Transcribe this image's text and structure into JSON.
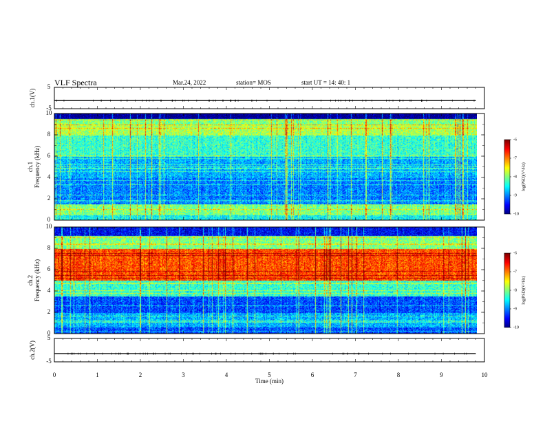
{
  "header": {
    "title": "VLF Spectra",
    "date": "Mar.24, 2022",
    "station": "station= MOS",
    "start_ut": "start  UT =   14: 40: 1"
  },
  "chart_data": [
    {
      "type": "line",
      "panel": "ch1-waveform",
      "ylabel": "ch.1(V)",
      "ylim": [
        -5,
        5
      ],
      "yticks": [
        "5",
        "-5"
      ],
      "x_range_min": [
        0,
        10
      ],
      "series": [
        {
          "values_note": "flat",
          "x": [
            0,
            9.8
          ],
          "y": [
            -1.2,
            -1.2
          ]
        }
      ]
    },
    {
      "type": "heatmap",
      "panel": "ch1-spectrogram",
      "ylabel": "Frequency (kHz)",
      "ylabel_prefix": "ch.1",
      "ylim": [
        0,
        10
      ],
      "yticks": [
        "0",
        "2",
        "4",
        "6",
        "8",
        "10"
      ],
      "x_range_min": [
        0,
        9.83
      ],
      "colorbar": {
        "label": "log(PSD)(V²/Hz)",
        "range": [
          -10,
          -6
        ],
        "ticks": [
          "-6",
          "-7",
          "-8",
          "-9",
          "-10"
        ]
      },
      "bands": [
        {
          "f_lo": 0,
          "f_hi": 0.5,
          "level": -8.5
        },
        {
          "f_lo": 0.5,
          "f_hi": 1.5,
          "level": -8.0
        },
        {
          "f_lo": 1.5,
          "f_hi": 2.5,
          "level": -9.0
        },
        {
          "f_lo": 2.5,
          "f_hi": 4.0,
          "level": -9.0
        },
        {
          "f_lo": 4.0,
          "f_hi": 6.0,
          "level": -8.8
        },
        {
          "f_lo": 6.0,
          "f_hi": 8.0,
          "level": -8.3
        },
        {
          "f_lo": 8.0,
          "f_hi": 9.0,
          "level": -7.8
        },
        {
          "f_lo": 9.0,
          "f_hi": 9.5,
          "level": -8.0
        },
        {
          "f_lo": 9.5,
          "f_hi": 10,
          "level": -10
        }
      ]
    },
    {
      "type": "heatmap",
      "panel": "ch2-spectrogram",
      "ylabel": "Frequency (kHz)",
      "ylabel_prefix": "ch.2",
      "ylim": [
        0,
        10
      ],
      "yticks": [
        "0",
        "2",
        "4",
        "6",
        "8",
        "10"
      ],
      "x_range_min": [
        0,
        9.83
      ],
      "colorbar": {
        "label": "log(PSD)(V²/Hz)",
        "range": [
          -10,
          -6
        ],
        "ticks": [
          "-6",
          "-7",
          "-8",
          "-9",
          "-10"
        ]
      },
      "bands": [
        {
          "f_lo": 0,
          "f_hi": 0.6,
          "level": -9.2
        },
        {
          "f_lo": 0.6,
          "f_hi": 2.0,
          "level": -8.8
        },
        {
          "f_lo": 2.0,
          "f_hi": 3.5,
          "level": -9.2
        },
        {
          "f_lo": 3.5,
          "f_hi": 5.0,
          "level": -8.3
        },
        {
          "f_lo": 5.0,
          "f_hi": 8.0,
          "level": -6.8
        },
        {
          "f_lo": 8.0,
          "f_hi": 9.2,
          "level": -8.0
        },
        {
          "f_lo": 9.2,
          "f_hi": 10,
          "level": -9.5
        }
      ]
    },
    {
      "type": "line",
      "panel": "ch2-waveform",
      "ylabel": "ch.2(V)",
      "ylim": [
        -5,
        5
      ],
      "yticks": [
        "5",
        "-5"
      ],
      "x_range_min": [
        0,
        10
      ],
      "series": [
        {
          "values_note": "flat",
          "x": [
            0,
            9.8
          ],
          "y": [
            -1.5,
            -1.5
          ]
        }
      ]
    }
  ],
  "xaxis": {
    "label": "Time  (min)",
    "ticks": [
      "0",
      "1",
      "2",
      "3",
      "4",
      "5",
      "6",
      "7",
      "8",
      "9",
      "10"
    ]
  },
  "colors": {
    "colormap": [
      "#000080",
      "#0000ff",
      "#00ffff",
      "#00ff00",
      "#ffff00",
      "#ff0000",
      "#ffffff"
    ]
  }
}
